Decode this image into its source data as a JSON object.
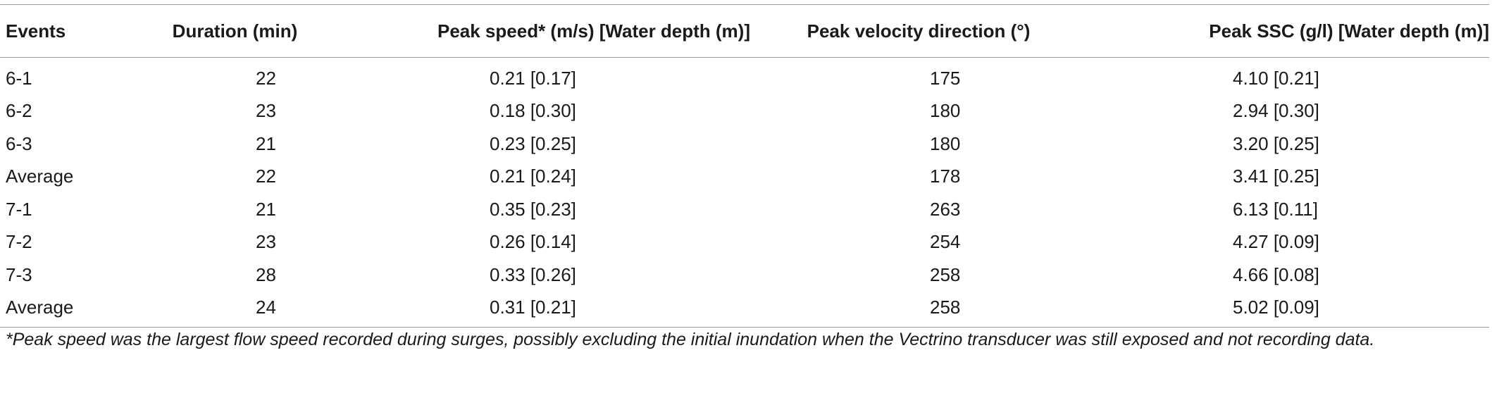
{
  "table": {
    "headers": [
      "Events",
      "Duration (min)",
      "Peak speed* (m/s) [Water depth (m)]",
      "Peak velocity direction (°)",
      "Peak SSC (g/l) [Water depth (m)]"
    ],
    "rows": [
      [
        "6-1",
        "22",
        "0.21 [0.17]",
        "175",
        "4.10 [0.21]"
      ],
      [
        "6-2",
        "23",
        "0.18 [0.30]",
        "180",
        "2.94 [0.30]"
      ],
      [
        "6-3",
        "21",
        "0.23 [0.25]",
        "180",
        "3.20 [0.25]"
      ],
      [
        "Average",
        "22",
        "0.21 [0.24]",
        "178",
        "3.41 [0.25]"
      ],
      [
        "7-1",
        "21",
        "0.35 [0.23]",
        "263",
        "6.13 [0.11]"
      ],
      [
        "7-2",
        "23",
        "0.26 [0.14]",
        "254",
        "4.27 [0.09]"
      ],
      [
        "7-3",
        "28",
        "0.33 [0.26]",
        "258",
        "4.66 [0.08]"
      ],
      [
        "Average",
        "24",
        "0.31 [0.21]",
        "258",
        "5.02 [0.09]"
      ]
    ]
  },
  "footnote": "*Peak speed was the largest flow speed recorded during surges, possibly excluding the initial inundation when the Vectrino transducer was still exposed and not recording data."
}
